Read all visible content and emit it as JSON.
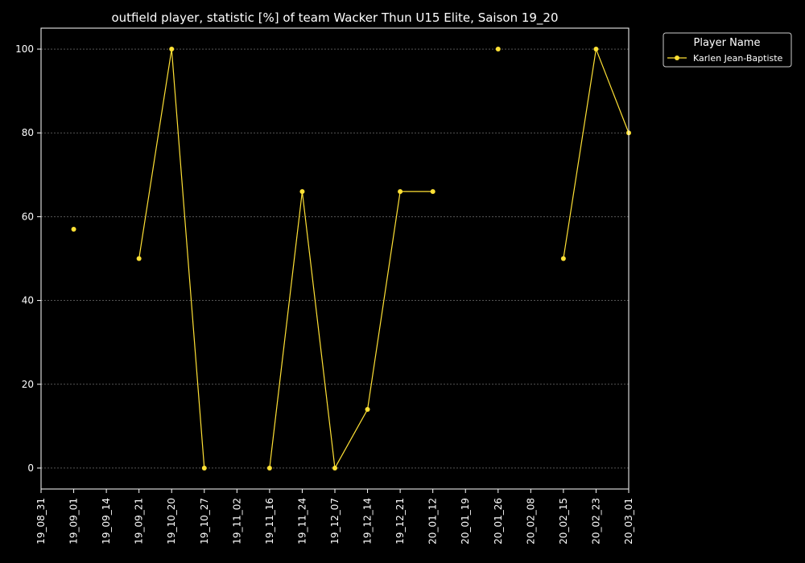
{
  "chart_data": {
    "type": "line",
    "title": "outfield player, statistic [%] of team Wacker Thun U15 Elite, Saison 19_20",
    "xlabel": "",
    "ylabel": "",
    "categories": [
      "19_08_31",
      "19_09_01",
      "19_09_14",
      "19_09_21",
      "19_10_20",
      "19_10_27",
      "19_11_02",
      "19_11_16",
      "19_11_24",
      "19_12_07",
      "19_12_14",
      "19_12_21",
      "20_01_12",
      "20_01_19",
      "20_01_26",
      "20_02_08",
      "20_02_15",
      "20_02_23",
      "20_03_01"
    ],
    "y_ticks": [
      0,
      20,
      40,
      60,
      80,
      100
    ],
    "ylim": [
      -5,
      105
    ],
    "grid": true,
    "legend": {
      "title": "Player Name",
      "position": "outside-top-right"
    },
    "colors": {
      "background": "#000000",
      "line": "#ffe135",
      "axis": "#ffffff",
      "grid": "#888888"
    },
    "series": [
      {
        "name": "Karlen Jean-Baptiste",
        "values": [
          null,
          57,
          null,
          50,
          100,
          0,
          null,
          0,
          66,
          0,
          14,
          66,
          66,
          null,
          100,
          null,
          50,
          100,
          80
        ]
      }
    ]
  }
}
